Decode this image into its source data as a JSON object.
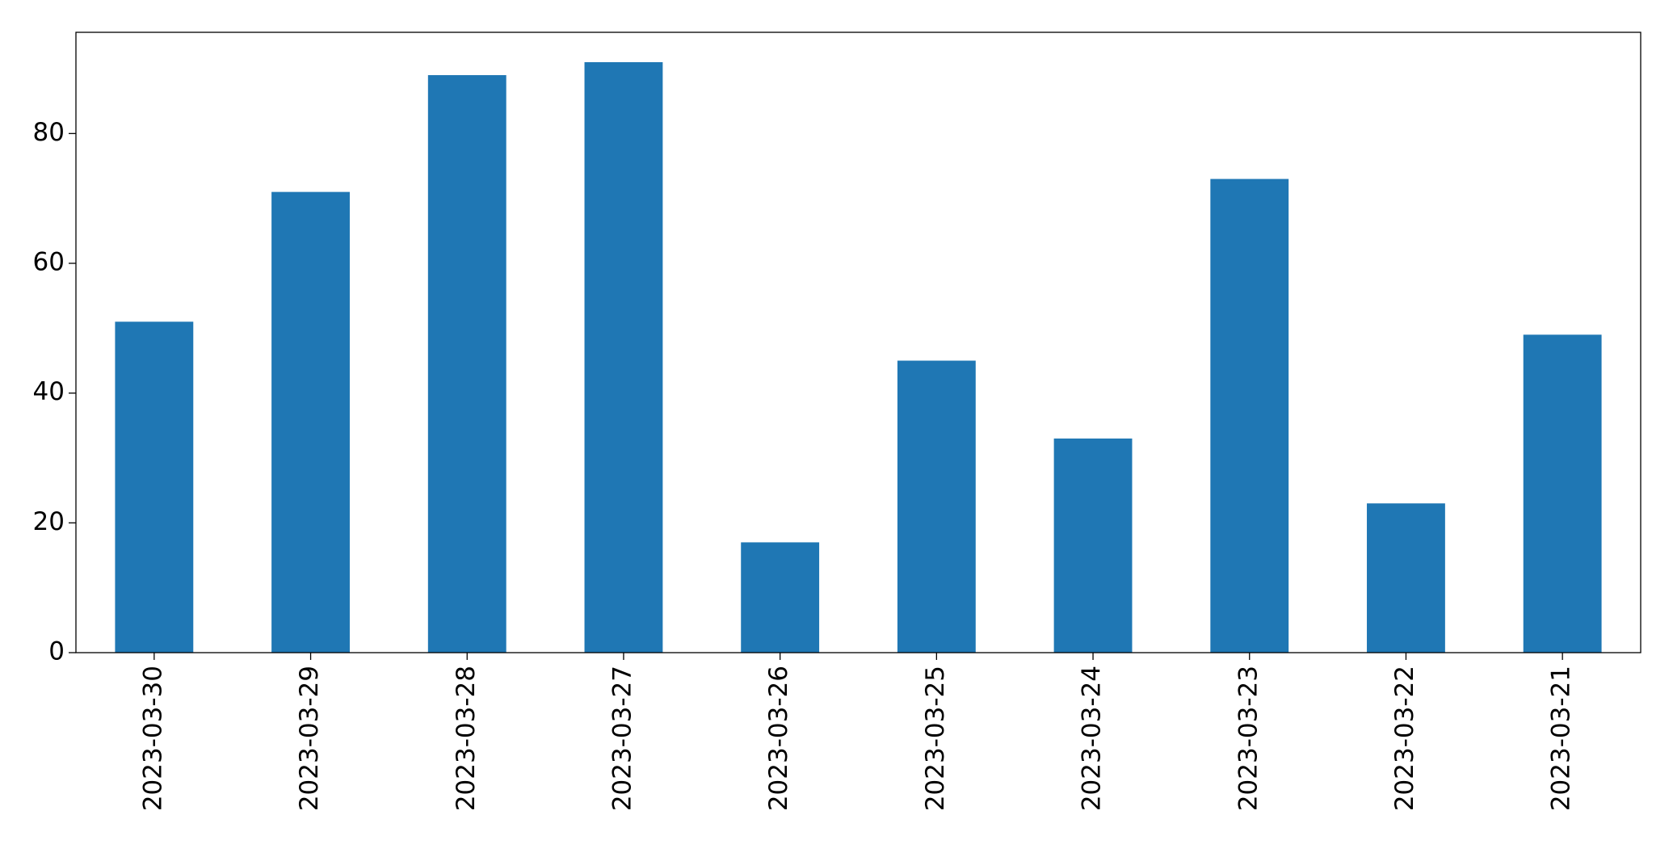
{
  "chart_data": {
    "type": "bar",
    "categories": [
      "2023-03-30",
      "2023-03-29",
      "2023-03-28",
      "2023-03-27",
      "2023-03-26",
      "2023-03-25",
      "2023-03-24",
      "2023-03-23",
      "2023-03-22",
      "2023-03-21"
    ],
    "values": [
      51,
      71,
      89,
      91,
      17,
      45,
      33,
      73,
      23,
      49
    ],
    "color": "#1f77b4",
    "ylim": [
      0,
      95.6
    ],
    "yticks": [
      0,
      20,
      40,
      60,
      80
    ],
    "grid": false
  }
}
